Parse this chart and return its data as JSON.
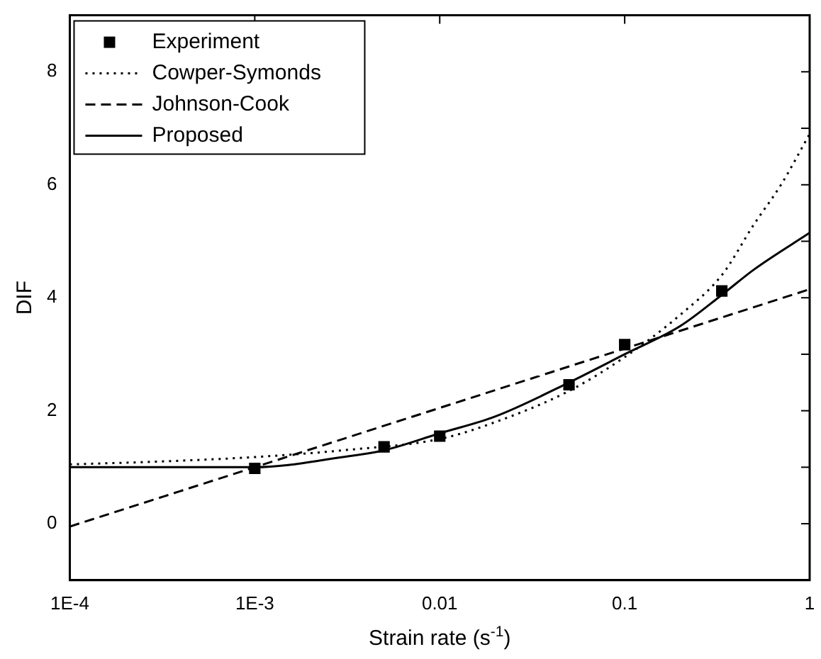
{
  "chart_data": {
    "type": "line",
    "xlabel": "Strain rate (s$^{-1}$)",
    "ylabel": "DIF",
    "log": "x",
    "xlim": [
      0.0001,
      1
    ],
    "ylim": [
      -1,
      9
    ],
    "xticks": [
      {
        "value": 0.0001,
        "label": "1E-4"
      },
      {
        "value": 0.001,
        "label": "1E-3"
      },
      0.01,
      0.1,
      1
    ],
    "yticks": [
      {
        "value": -1,
        "label": null
      },
      0,
      {
        "value": 1,
        "label": null
      },
      2,
      {
        "value": 3,
        "label": null
      },
      4,
      {
        "value": 5,
        "label": null
      },
      6,
      {
        "value": 7,
        "label": null
      },
      8,
      {
        "value": 9,
        "label": null
      }
    ],
    "grid": false,
    "legend": "top left",
    "series": [
      {
        "name": "Experiment",
        "type": "scatter",
        "marker": "square",
        "color": "#000000",
        "x": [
          0.001,
          0.005,
          0.01,
          0.05,
          0.1,
          0.335
        ],
        "values": [
          0.98,
          1.36,
          1.55,
          2.46,
          3.17,
          4.12
        ]
      },
      {
        "name": "Cowper-Symonds",
        "type": "line",
        "marker": "none",
        "line_style": "dotted",
        "color": "#000000",
        "x": [
          0.0001,
          0.0003,
          0.001,
          0.003,
          0.01,
          0.02,
          0.05,
          0.1,
          0.2,
          0.335,
          0.5,
          0.7,
          1
        ],
        "values": [
          1.05,
          1.1,
          1.18,
          1.3,
          1.5,
          1.8,
          2.35,
          2.95,
          3.7,
          4.4,
          5.3,
          6.0,
          6.9
        ]
      },
      {
        "name": "Johnson-Cook",
        "type": "line",
        "marker": "none",
        "line_style": "dashed",
        "color": "#000000",
        "x": [
          0.0001,
          0.001,
          0.01,
          0.1,
          1
        ],
        "values": [
          -0.05,
          1.0,
          2.05,
          3.1,
          4.15
        ]
      },
      {
        "name": "Proposed",
        "type": "line",
        "marker": "none",
        "line_style": "solid",
        "color": "#000000",
        "x": [
          0.0001,
          0.001,
          0.003,
          0.005,
          0.01,
          0.02,
          0.05,
          0.1,
          0.2,
          0.335,
          0.5,
          1
        ],
        "values": [
          1.0,
          1.0,
          1.18,
          1.3,
          1.6,
          1.9,
          2.5,
          3.0,
          3.5,
          4.05,
          4.5,
          5.15
        ]
      }
    ]
  }
}
